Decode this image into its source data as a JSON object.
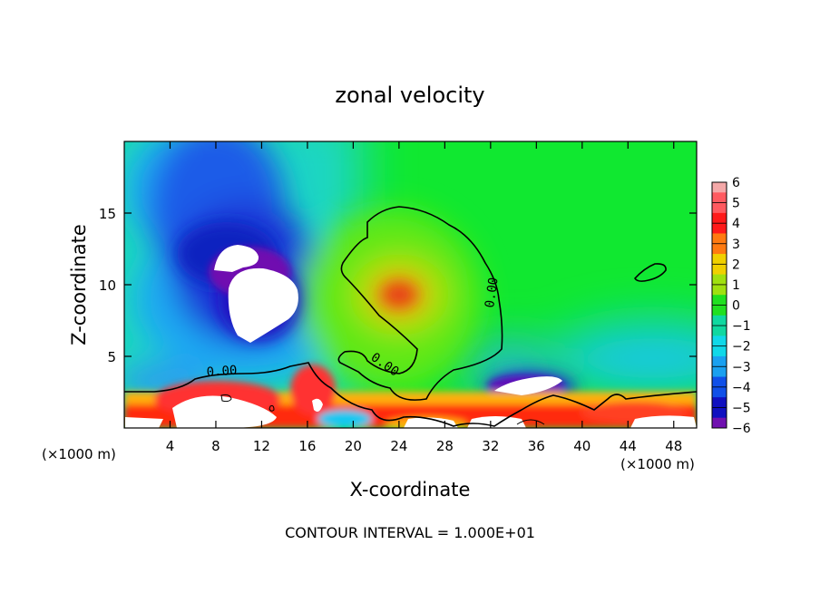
{
  "chart_data": {
    "type": "heatmap",
    "title": "zonal velocity",
    "xlabel": "X-coordinate",
    "ylabel": "Z-coordinate",
    "x_unit_label": "(×1000 m)",
    "x_unit_label_right": "(×1000 m)",
    "xlim": [
      0,
      50
    ],
    "ylim": [
      0,
      20
    ],
    "x_ticks": [
      4,
      8,
      12,
      16,
      20,
      24,
      28,
      32,
      36,
      40,
      44,
      48
    ],
    "y_ticks": [
      5,
      10,
      15
    ],
    "colorbar": {
      "ticks": [
        6,
        5,
        4,
        3,
        2,
        1,
        0,
        -1,
        -2,
        -3,
        -4,
        -5,
        -6
      ],
      "labels": [
        "6",
        "5",
        "4",
        "3",
        "2",
        "1",
        "0",
        "−1",
        "−2",
        "−3",
        "−4",
        "−5",
        "−6"
      ],
      "range": [
        -6,
        6
      ]
    },
    "contour_labels": [
      "0.00",
      "0.00",
      "0.00"
    ],
    "footer": "CONTOUR INTERVAL = 1.000E+01",
    "features": [
      {
        "name": "strong negative jet",
        "x": 9.5,
        "z": 9.5,
        "value": -6
      },
      {
        "name": "positive core",
        "x": 24,
        "z": 9.3,
        "value": 3.5
      },
      {
        "name": "positive region",
        "x": 26,
        "z": 11,
        "value": 1
      },
      {
        "name": "negative pocket",
        "x": 36,
        "z": 3,
        "value": -6
      }
    ]
  }
}
